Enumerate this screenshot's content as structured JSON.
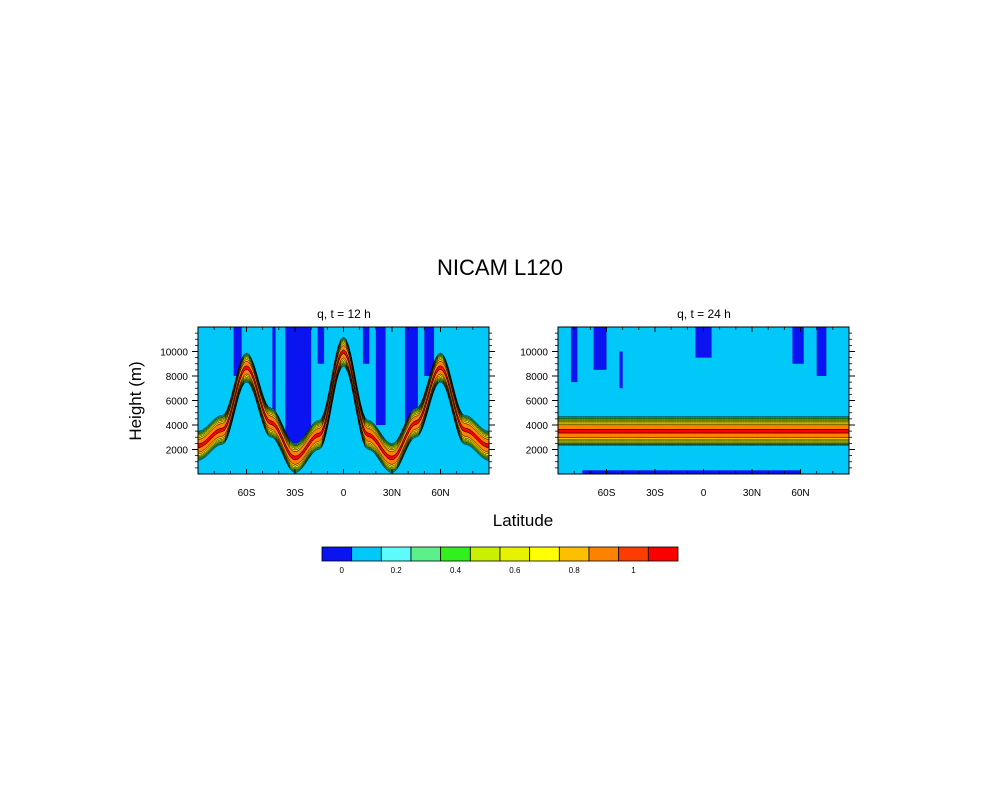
{
  "figure": {
    "title": "NICAM L120",
    "xlabel": "Latitude",
    "ylabel": "Height (m)"
  },
  "colors": {
    "levels": [
      "#0a14f0",
      "#00c8f8",
      "#5cfcfc",
      "#5cf08c",
      "#32f01e",
      "#c8f000",
      "#e6f200",
      "#ffff00",
      "#fcc000",
      "#fc8200",
      "#fc3c00",
      "#fc0000"
    ],
    "contour_line": "#000000"
  },
  "colorbar": {
    "tick_labels": [
      "0",
      "0.2",
      "0.4",
      "0.6",
      "0.8",
      "1"
    ],
    "tick_values": [
      0,
      0.2,
      0.4,
      0.6,
      0.8,
      1.0
    ],
    "level_edges": [
      -0.1,
      0.05,
      0.15,
      0.25,
      0.35,
      0.45,
      0.55,
      0.65,
      0.75,
      0.85,
      0.95,
      1.05,
      1.1
    ]
  },
  "chart_data": [
    {
      "type": "heatmap",
      "title": "q, t = 12 h",
      "xlabel": "Latitude",
      "ylabel": "Height (m)",
      "xlim": [
        -90,
        90
      ],
      "ylim": [
        0,
        12000
      ],
      "x_ticks": [
        -60,
        -30,
        0,
        30,
        60
      ],
      "x_tick_labels": [
        "60S",
        "30S",
        "0",
        "30N",
        "60N"
      ],
      "y_ticks": [
        2000,
        4000,
        6000,
        8000,
        10000
      ],
      "y_tick_labels": [
        "2000",
        "4000",
        "6000",
        "8000",
        "10000"
      ],
      "field": {
        "description": "tracer band following a cosine-shaped layer",
        "background_value": 0.1,
        "peak_value": 1.0,
        "band_center_height_m": [
          [
            -90,
            2300
          ],
          [
            -75,
            3600
          ],
          [
            -60,
            8700
          ],
          [
            -45,
            4200
          ],
          [
            -30,
            1300
          ],
          [
            -15,
            3200
          ],
          [
            0,
            10000
          ],
          [
            15,
            3200
          ],
          [
            30,
            1300
          ],
          [
            45,
            4200
          ],
          [
            60,
            8700
          ],
          [
            75,
            3600
          ],
          [
            90,
            2300
          ]
        ],
        "band_half_width_m": 1100,
        "negative_regions": [
          {
            "lat_range": [
              -68,
              -63
            ],
            "height_range": [
              8000,
              12000
            ]
          },
          {
            "lat_range": [
              -44,
              -42
            ],
            "height_range": [
              4500,
              12000
            ]
          },
          {
            "lat_range": [
              -36,
              -20
            ],
            "height_range": [
              2000,
              12000
            ]
          },
          {
            "lat_range": [
              -16,
              -12
            ],
            "height_range": [
              9000,
              12000
            ]
          },
          {
            "lat_range": [
              12,
              16
            ],
            "height_range": [
              9000,
              12000
            ]
          },
          {
            "lat_range": [
              20,
              26
            ],
            "height_range": [
              4000,
              12000
            ]
          },
          {
            "lat_range": [
              38,
              46
            ],
            "height_range": [
              4000,
              12000
            ]
          },
          {
            "lat_range": [
              50,
              56
            ],
            "height_range": [
              8000,
              12000
            ]
          }
        ]
      }
    },
    {
      "type": "heatmap",
      "title": "q, t = 24 h",
      "xlabel": "Latitude",
      "ylabel": "Height (m)",
      "xlim": [
        -90,
        90
      ],
      "ylim": [
        0,
        12000
      ],
      "x_ticks": [
        -60,
        -30,
        0,
        30,
        60
      ],
      "x_tick_labels": [
        "60S",
        "30S",
        "0",
        "30N",
        "60N"
      ],
      "y_ticks": [
        2000,
        4000,
        6000,
        8000,
        10000
      ],
      "y_tick_labels": [
        "2000",
        "4000",
        "6000",
        "8000",
        "10000"
      ],
      "field": {
        "description": "horizontal tracer layer",
        "background_value": 0.1,
        "peak_value": 1.0,
        "band_center_height_m": [
          [
            -90,
            3500
          ],
          [
            90,
            3500
          ]
        ],
        "band_half_width_m": 1100,
        "negative_regions": [
          {
            "lat_range": [
              -82,
              -78
            ],
            "height_range": [
              7500,
              12000
            ]
          },
          {
            "lat_range": [
              -68,
              -60
            ],
            "height_range": [
              8500,
              12000
            ]
          },
          {
            "lat_range": [
              -52,
              -50
            ],
            "height_range": [
              7000,
              10000
            ]
          },
          {
            "lat_range": [
              -5,
              5
            ],
            "height_range": [
              9500,
              12000
            ]
          },
          {
            "lat_range": [
              55,
              62
            ],
            "height_range": [
              9000,
              12000
            ]
          },
          {
            "lat_range": [
              70,
              76
            ],
            "height_range": [
              8000,
              12000
            ]
          },
          {
            "lat_range": [
              -75,
              60
            ],
            "height_range": [
              0,
              300
            ]
          }
        ]
      }
    }
  ]
}
